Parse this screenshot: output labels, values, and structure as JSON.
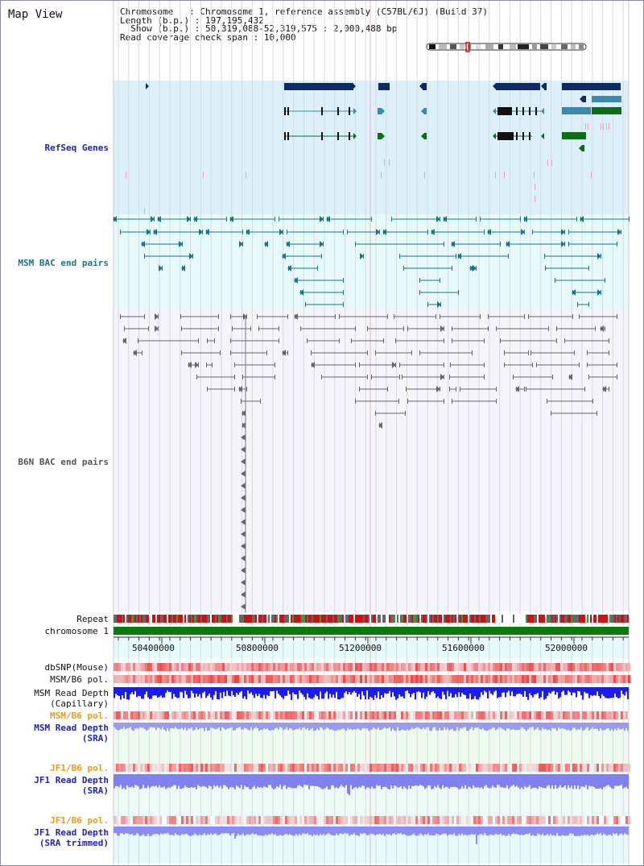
{
  "page_title": "Map View",
  "header": {
    "chromosome_label": "Chromosome",
    "chromosome_value": "Chromosome 1, reference assembly (C57BL/6J) (Build 37)",
    "length_label": "Length (b.p.)",
    "length_value": "197,195,432",
    "show_label": "Show (b.p.)",
    "show_value": "50,319,088-52,319,575 : 2,000,488 bp",
    "coverage_label": "Read coverage check span",
    "coverage_value": "10,000"
  },
  "tracks": {
    "refseq": "RefSeq Genes",
    "msm_bac": "MSM BAC end pairs",
    "b6n_bac": "B6N BAC end pairs",
    "repeat": "Repeat",
    "chromosome": "chromosome 1",
    "dbsnp": "dbSNP(Mouse)",
    "msm_b6_pol_1": "MSM/B6 pol.",
    "msm_read_depth_cap_1": "MSM Read Depth",
    "msm_read_depth_cap_2": "(Capillary)",
    "msm_b6_pol_2": "MSM/B6 pol.",
    "msm_read_depth_sra_1": "MSM Read Depth",
    "msm_read_depth_sra_2": "(SRA)",
    "jf1_b6_pol_1": "JF1/B6 pol.",
    "jf1_read_depth_sra_1": "JF1 Read Depth",
    "jf1_read_depth_sra_2": "(SRA)",
    "jf1_b6_pol_2": "JF1/B6 pol.",
    "jf1_read_depth_trim_1": "JF1 Read Depth",
    "jf1_read_depth_trim_2": "(SRA trimmed)"
  },
  "axis": {
    "ticks": [
      "50400000",
      "50800000",
      "51200000",
      "51600000",
      "52000000"
    ]
  },
  "colors": {
    "refseq_bg": "#dcf0fa",
    "msm_bg": "#e6fafa",
    "b6n_bg": "#f4f4fa",
    "gene_dark": "#0e2a66",
    "gene_teal": "#3a8ab0",
    "gene_green": "#0b6e14",
    "bac_teal": "#17748c",
    "bac_grey": "#666666",
    "repeat_red": "#d01010",
    "chrom_green": "#0a7a10",
    "snp_red": "#f04040",
    "depth_blue": "#1a1aff",
    "depth_light": "#8080f0"
  }
}
